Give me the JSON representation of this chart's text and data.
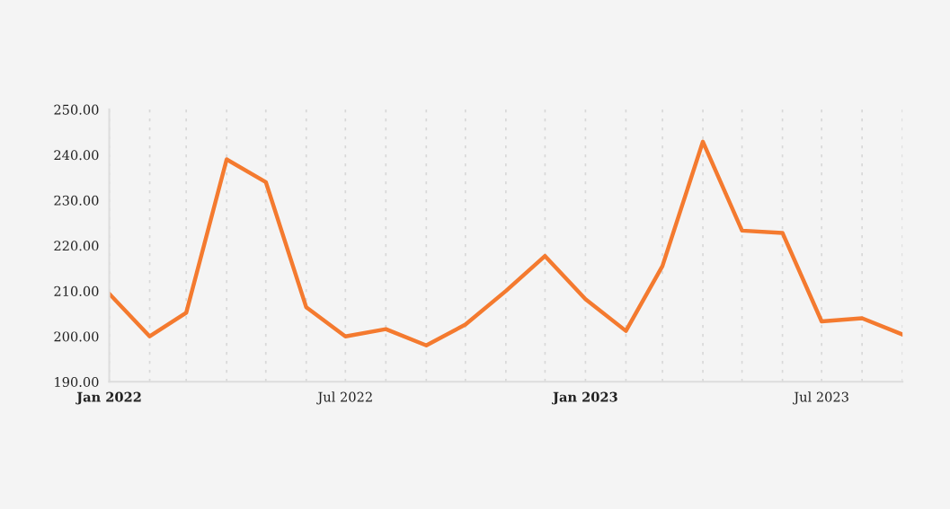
{
  "chart_data": {
    "type": "line",
    "x": [
      "2022-01",
      "2022-02",
      "2022-03",
      "2022-04",
      "2022-05",
      "2022-06",
      "2022-07",
      "2022-08",
      "2022-09",
      "2022-10",
      "2022-11",
      "2022-12",
      "2023-01",
      "2023-02",
      "2023-03",
      "2023-04",
      "2023-05",
      "2023-06",
      "2023-07",
      "2023-08",
      "2023-09"
    ],
    "series": [
      {
        "color": "#f47a2f",
        "values": [
          209.4,
          200,
          205.2,
          239,
          234,
          206.4,
          200,
          201.6,
          198,
          202.6,
          210,
          217.7,
          208.2,
          201.2,
          215.5,
          242.9,
          223.3,
          222.8,
          203.3,
          204,
          200.4
        ]
      }
    ],
    "xlim": [
      "2022-01",
      "2023-09"
    ],
    "xticks": [
      {
        "value": "2022-01",
        "label": "Jan 2022"
      },
      {
        "value": "2022-02",
        "label": null
      },
      {
        "value": "2022-03",
        "label": null
      },
      {
        "value": "2022-04",
        "label": null
      },
      {
        "value": "2022-05",
        "label": null
      },
      {
        "value": "2022-06",
        "label": null
      },
      {
        "value": "2022-07",
        "label": "Jul 2022"
      },
      {
        "value": "2022-08",
        "label": null
      },
      {
        "value": "2022-09",
        "label": null
      },
      {
        "value": "2022-10",
        "label": null
      },
      {
        "value": "2022-11",
        "label": null
      },
      {
        "value": "2022-12",
        "label": null
      },
      {
        "value": "2023-01",
        "label": "Jan 2023"
      },
      {
        "value": "2023-02",
        "label": null
      },
      {
        "value": "2023-03",
        "label": null
      },
      {
        "value": "2023-04",
        "label": null
      },
      {
        "value": "2023-05",
        "label": null
      },
      {
        "value": "2023-06",
        "label": null
      },
      {
        "value": "2023-07",
        "label": "Jul 2023"
      },
      {
        "value": "2023-08",
        "label": null
      },
      {
        "value": "2023-09",
        "label": null
      }
    ],
    "ylim": [
      190,
      250
    ],
    "yticks": [
      {
        "value": 190,
        "label": "190.00"
      },
      {
        "value": 200,
        "label": "200.00"
      },
      {
        "value": 210,
        "label": "210.00"
      },
      {
        "value": 220,
        "label": "220.00"
      },
      {
        "value": 230,
        "label": "230.00"
      },
      {
        "value": 240,
        "label": "240.00"
      },
      {
        "value": 250,
        "label": "250.00"
      }
    ],
    "grid": "x",
    "marker": "none",
    "line_style": "solid"
  }
}
